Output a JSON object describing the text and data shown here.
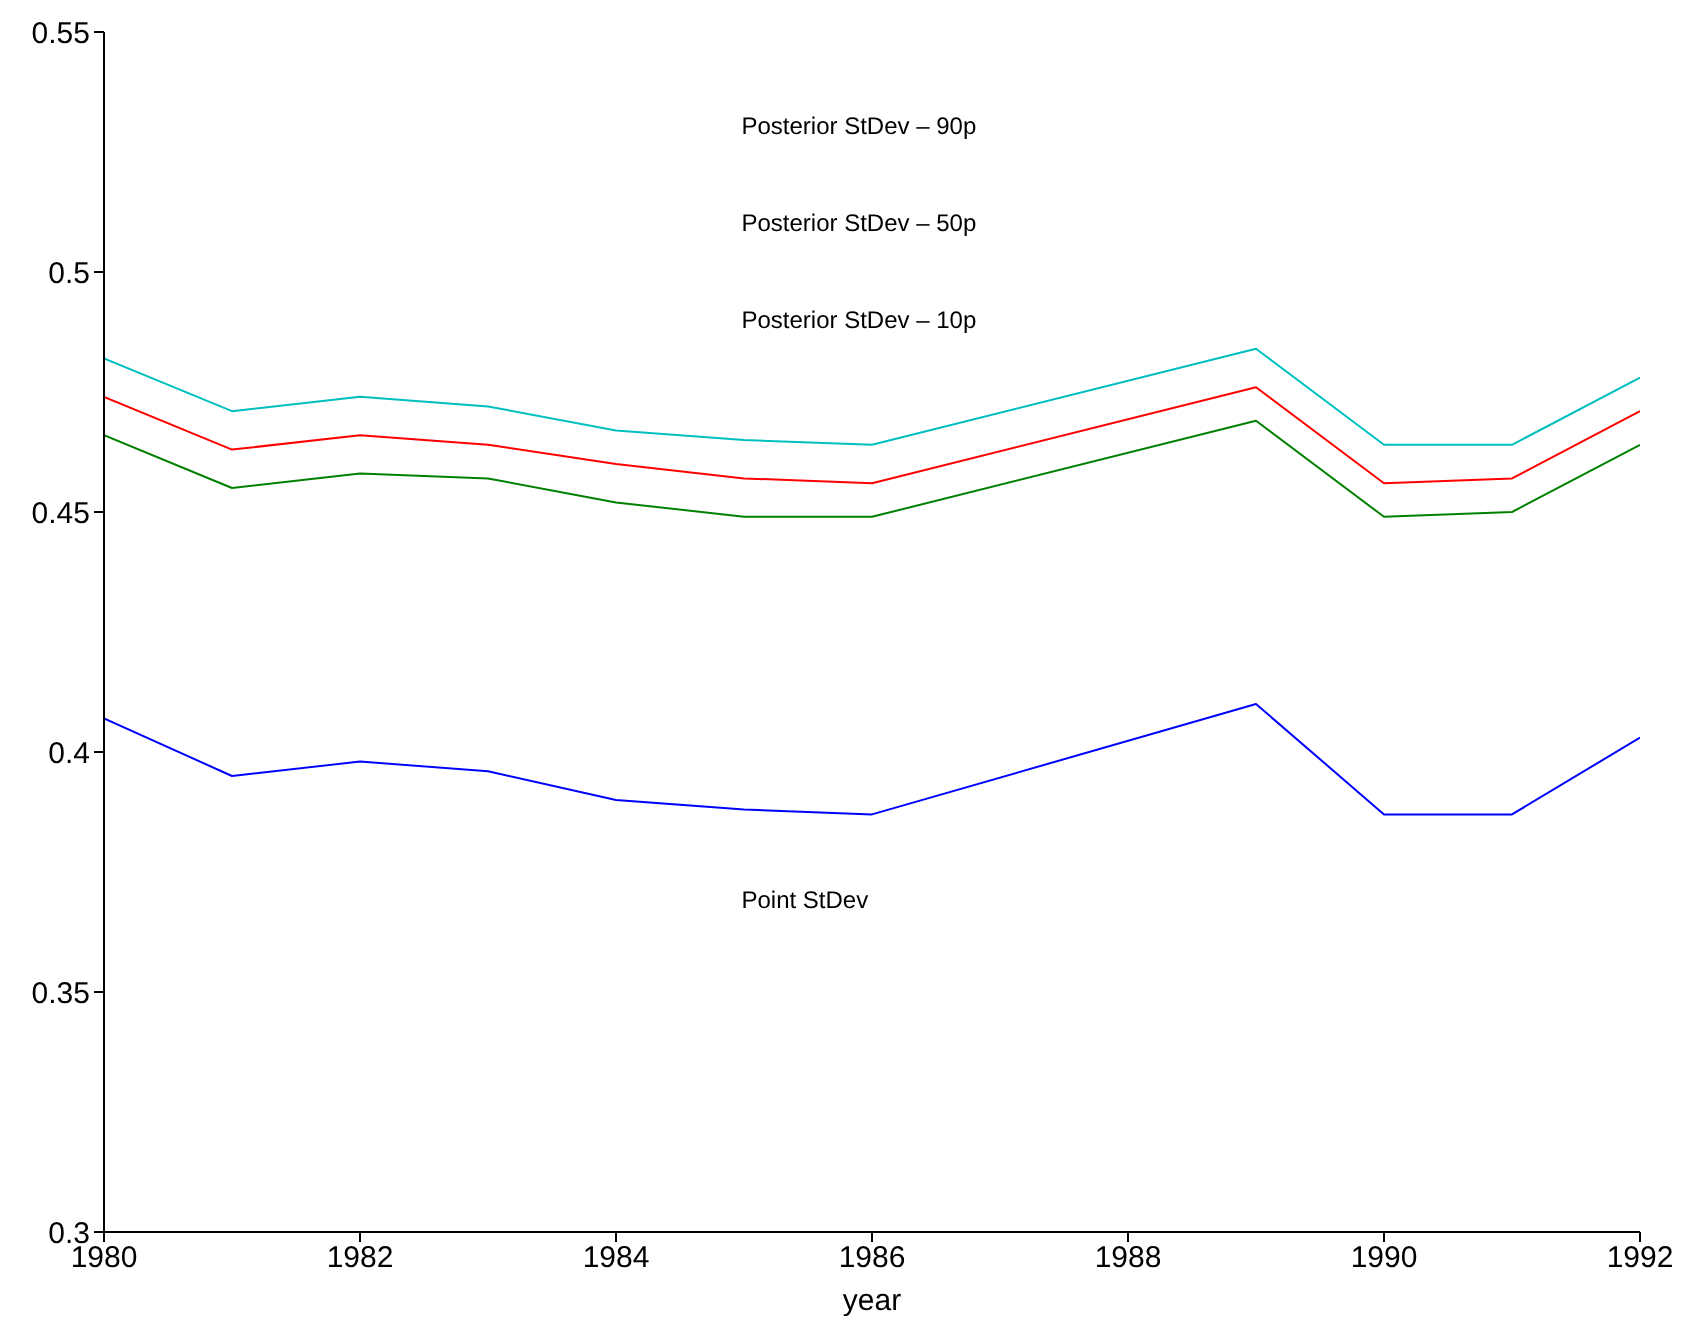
{
  "chart_data": {
    "type": "line",
    "xlabel": "year",
    "x": [
      1980,
      1981,
      1982,
      1983,
      1984,
      1985,
      1986,
      1989,
      1990,
      1991,
      1992
    ],
    "series": [
      {
        "color": "#00bfbf",
        "values": [
          0.482,
          0.471,
          0.474,
          0.472,
          0.467,
          0.465,
          0.464,
          0.484,
          0.464,
          0.464,
          0.478
        ]
      },
      {
        "color": "#ff0000",
        "values": [
          0.474,
          0.463,
          0.466,
          0.464,
          0.46,
          0.457,
          0.456,
          0.476,
          0.456,
          0.457,
          0.471
        ]
      },
      {
        "color": "#008000",
        "values": [
          0.466,
          0.455,
          0.458,
          0.457,
          0.452,
          0.449,
          0.449,
          0.469,
          0.449,
          0.45,
          0.464
        ]
      },
      {
        "color": "#0000ff",
        "values": [
          0.407,
          0.395,
          0.398,
          0.396,
          0.39,
          0.388,
          0.387,
          0.41,
          0.387,
          0.387,
          0.403
        ]
      }
    ],
    "xlim": [
      1980,
      1992
    ],
    "xticks": [
      1980,
      1982,
      1984,
      1986,
      1988,
      1990,
      1992
    ],
    "annotations": [
      "Posterior StDev – 90p",
      "Posterior StDev – 50p",
      "Posterior StDev – 10p",
      "Point StDev"
    ],
    "ylim": [
      0.3,
      0.55
    ],
    "yticks": [
      0.3,
      0.35,
      0.4,
      0.45,
      0.5,
      0.55
    ],
    "grid": false,
    "legend": false,
    "marker": "none",
    "line_style": "solid"
  }
}
